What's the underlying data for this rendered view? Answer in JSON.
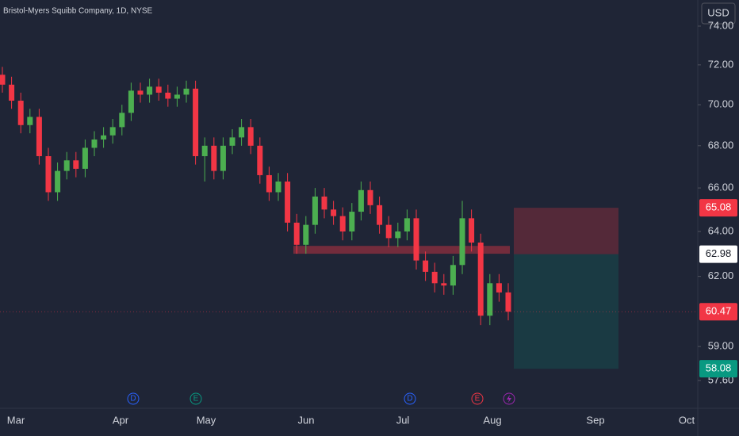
{
  "chart_data": {
    "type": "candlestick",
    "title": "Bristol-Myers Squibb Company, 1D, NYSE",
    "currency": "USD",
    "log_scale": true,
    "grid": false,
    "up_color": "#4caf50",
    "down_color": "#f23645",
    "ylim": [
      56.48,
      75.38
    ],
    "yticks": [
      {
        "value": 74,
        "label": "74.00"
      },
      {
        "value": 72,
        "label": "72.00"
      },
      {
        "value": 70,
        "label": "70.00"
      },
      {
        "value": 68,
        "label": "68.00"
      },
      {
        "value": 66,
        "label": "66.00"
      },
      {
        "value": 64,
        "label": "64.00"
      },
      {
        "value": 62,
        "label": "62.00"
      },
      {
        "value": 59,
        "label": "59.00"
      },
      {
        "value": 57.6,
        "label": "57.60"
      }
    ],
    "x_labels": [
      "Mar",
      "Apr",
      "May",
      "Jun",
      "Jul",
      "Aug",
      "Sep",
      "Oct"
    ],
    "open": [
      71.5,
      71.0,
      70.2,
      69.0,
      69.4,
      67.5,
      65.8,
      66.8,
      67.3,
      66.9,
      67.9,
      68.3,
      68.5,
      68.9,
      69.6,
      70.7,
      70.5,
      70.9,
      70.6,
      70.3,
      70.5,
      70.8,
      67.5,
      68.0,
      66.8,
      68.0,
      68.4,
      68.9,
      68.0,
      66.6,
      65.8,
      66.3,
      64.4,
      63.4,
      64.3,
      65.6,
      65.0,
      64.7,
      64.0,
      64.9,
      65.9,
      65.2,
      64.3,
      63.7,
      64.0,
      64.6,
      62.7,
      62.2,
      61.7,
      61.6,
      62.5,
      64.6,
      63.5,
      60.3,
      61.7,
      61.3
    ],
    "high": [
      71.9,
      71.4,
      70.6,
      69.8,
      69.8,
      67.9,
      67.2,
      67.7,
      67.7,
      68.3,
      68.7,
      68.9,
      69.3,
      70.0,
      71.1,
      71.1,
      71.3,
      71.3,
      71.0,
      70.9,
      71.2,
      71.2,
      68.4,
      68.4,
      68.4,
      68.8,
      69.3,
      69.3,
      68.4,
      67.0,
      66.7,
      66.7,
      64.8,
      64.7,
      66.0,
      66.0,
      65.4,
      65.1,
      65.3,
      66.3,
      66.3,
      65.6,
      64.7,
      64.4,
      65.0,
      65.0,
      63.1,
      62.6,
      62.1,
      62.9,
      65.4,
      65.0,
      63.9,
      62.1,
      62.1,
      61.7
    ],
    "low": [
      70.6,
      69.8,
      68.6,
      68.6,
      67.1,
      65.4,
      65.4,
      66.4,
      66.5,
      66.5,
      67.5,
      67.9,
      68.1,
      68.5,
      69.2,
      70.1,
      70.1,
      70.2,
      69.9,
      69.9,
      70.1,
      67.1,
      66.3,
      66.4,
      66.4,
      67.6,
      68.0,
      67.6,
      66.2,
      65.4,
      65.4,
      64.0,
      63.0,
      63.0,
      63.9,
      64.6,
      64.3,
      63.6,
      63.6,
      64.5,
      64.8,
      63.9,
      63.3,
      63.3,
      63.6,
      62.3,
      61.8,
      61.3,
      61.2,
      61.2,
      62.1,
      63.1,
      59.9,
      59.9,
      60.9,
      60.1
    ],
    "close": [
      71.0,
      70.2,
      69.0,
      69.4,
      67.5,
      65.8,
      66.8,
      67.3,
      66.9,
      67.9,
      68.3,
      68.5,
      68.9,
      69.6,
      70.7,
      70.5,
      70.9,
      70.6,
      70.3,
      70.5,
      70.8,
      67.5,
      68.0,
      66.8,
      68.0,
      68.4,
      68.9,
      68.0,
      66.6,
      65.8,
      66.3,
      64.4,
      63.4,
      64.3,
      65.6,
      65.0,
      64.7,
      64.0,
      64.9,
      65.9,
      65.2,
      64.3,
      63.7,
      64.0,
      64.6,
      62.7,
      62.2,
      61.7,
      61.6,
      62.5,
      64.6,
      63.5,
      60.3,
      61.7,
      61.3,
      60.47
    ],
    "last_price": 60.47,
    "support_zone": {
      "low": 63.0,
      "high": 63.35
    },
    "position": {
      "stop": 65.08,
      "entry": 62.98,
      "target": 58.08
    },
    "events": [
      "D",
      "E",
      "D",
      "E"
    ]
  }
}
